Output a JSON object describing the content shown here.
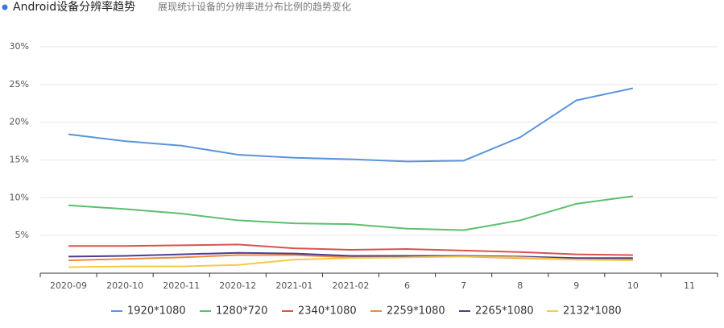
{
  "chart_data": {
    "type": "line",
    "title": "Android设备分辨率趋势",
    "subtitle": "展现统计设备的分辨率进分布比例的趋势变化",
    "categories": [
      "2020-09",
      "2020-10",
      "2020-11",
      "2020-12",
      "2021-01",
      "2021-02",
      "6",
      "7",
      "8",
      "9",
      "10",
      "11"
    ],
    "ylim": [
      0,
      30
    ],
    "yticks": [
      {
        "value": 5,
        "label": "5%"
      },
      {
        "value": 10,
        "label": "10%"
      },
      {
        "value": 15,
        "label": "15%"
      },
      {
        "value": 20,
        "label": "20%"
      },
      {
        "value": 25,
        "label": "25%"
      },
      {
        "value": 30,
        "label": "30%"
      }
    ],
    "grid": true,
    "legend": "bottom",
    "series": [
      {
        "name": "1920*1080",
        "color": "#5b93dc",
        "values": [
          18.4,
          17.5,
          16.9,
          15.7,
          15.3,
          15.1,
          14.8,
          14.9,
          18.0,
          22.9,
          24.5,
          null
        ]
      },
      {
        "name": "1280*720",
        "color": "#5cbf6e",
        "values": [
          9.0,
          8.5,
          7.9,
          7.0,
          6.6,
          6.5,
          5.9,
          5.7,
          7.0,
          9.2,
          10.2,
          null
        ]
      },
      {
        "name": "2340*1080",
        "color": "#d9534f",
        "values": [
          3.6,
          3.6,
          3.7,
          3.8,
          3.3,
          3.1,
          3.2,
          3.0,
          2.8,
          2.5,
          2.4,
          null
        ]
      },
      {
        "name": "2259*1080",
        "color": "#ef8a3f",
        "values": [
          1.7,
          1.9,
          2.1,
          2.4,
          2.4,
          2.1,
          2.2,
          2.2,
          2.0,
          1.8,
          1.8,
          null
        ]
      },
      {
        "name": "2265*1080",
        "color": "#4c3f8e",
        "values": [
          2.2,
          2.3,
          2.5,
          2.7,
          2.6,
          2.3,
          2.3,
          2.3,
          2.2,
          2.0,
          2.0,
          null
        ]
      },
      {
        "name": "2132*1080",
        "color": "#f6c94a",
        "values": [
          0.8,
          0.9,
          0.9,
          1.1,
          1.8,
          2.0,
          2.1,
          2.2,
          2.1,
          1.8,
          1.7,
          null
        ]
      }
    ]
  }
}
